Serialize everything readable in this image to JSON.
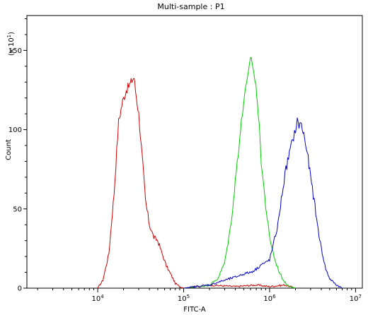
{
  "chart_data": {
    "type": "line",
    "title": "Multi-sample : P1",
    "xlabel": "FITC-A",
    "ylabel": "Count",
    "y_scale_label": "(x 10",
    "y_scale_exp": "1",
    "x_scale": "log",
    "xlim": [
      1500,
      12000000
    ],
    "ylim": [
      0,
      172
    ],
    "y_ticks": [
      {
        "v": 0,
        "label": "0"
      },
      {
        "v": 50,
        "label": "50"
      },
      {
        "v": 100,
        "label": "100"
      },
      {
        "v": 150,
        "label": "150"
      }
    ],
    "x_ticks": [
      {
        "v": 10000,
        "base": "10",
        "exp": "4"
      },
      {
        "v": 100000,
        "base": "10",
        "exp": "5"
      },
      {
        "v": 1000000,
        "base": "10",
        "exp": "6"
      },
      {
        "v": 10000000,
        "base": "10",
        "exp": "7"
      }
    ],
    "grid": false,
    "series": [
      {
        "color": "#cc0000",
        "x": [
          10000,
          11500,
          13500,
          15500,
          17500,
          19500,
          21500,
          23500,
          25000,
          26500,
          27500,
          30000,
          33000,
          36000,
          40000,
          45000,
          50000,
          56000,
          63000,
          72000,
          80000,
          90000,
          100000,
          130000,
          200000,
          400000,
          700000,
          1000000,
          1500000,
          2000000
        ],
        "y": [
          0,
          5,
          22,
          60,
          105,
          118,
          125,
          128,
          131,
          133,
          125,
          110,
          82,
          55,
          40,
          32,
          30,
          22,
          14,
          8,
          3,
          1,
          0,
          1,
          2,
          1,
          2,
          1,
          2,
          0
        ]
      },
      {
        "color": "#00cc00",
        "x": [
          100000,
          150000,
          200000,
          250000,
          300000,
          350000,
          380000,
          420000,
          460000,
          500000,
          540000,
          570000,
          600000,
          640000,
          680000,
          720000,
          760000,
          800000,
          900000,
          1000000,
          1150000,
          1300000,
          1450000,
          1600000,
          1800000,
          2000000
        ],
        "y": [
          0,
          1,
          2,
          6,
          16,
          38,
          55,
          80,
          100,
          118,
          128,
          135,
          147,
          140,
          130,
          120,
          100,
          80,
          52,
          32,
          18,
          10,
          5,
          2,
          1,
          0
        ]
      },
      {
        "color": "#0000cc",
        "x": [
          100000,
          200000,
          300000,
          400000,
          500000,
          600000,
          700000,
          800000,
          900000,
          1000000,
          1100000,
          1250000,
          1400000,
          1550000,
          1700000,
          1850000,
          2000000,
          2100000,
          2200000,
          2300000,
          2500000,
          2750000,
          3000000,
          3300000,
          3600000,
          4000000,
          4500000,
          5000000,
          6000000,
          7000000
        ],
        "y": [
          0,
          2,
          5,
          7,
          9,
          10,
          12,
          15,
          16,
          18,
          27,
          40,
          60,
          75,
          85,
          93,
          100,
          105,
          103,
          104,
          97,
          85,
          70,
          55,
          40,
          25,
          12,
          6,
          2,
          0
        ]
      }
    ]
  }
}
